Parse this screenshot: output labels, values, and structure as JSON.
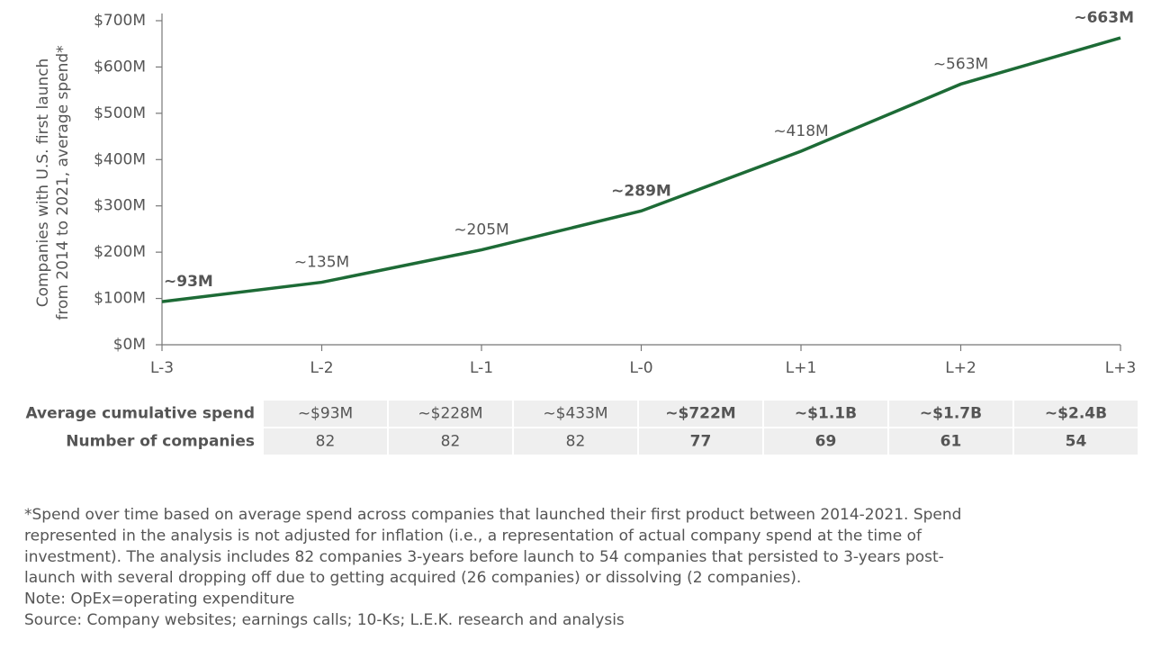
{
  "chart_data": {
    "type": "line",
    "ylabel": [
      "Companies with U.S. first launch",
      "from 2014 to 2021, average spend*"
    ],
    "categories": [
      "L-3",
      "L-2",
      "L-1",
      "L-0",
      "L+1",
      "L+2",
      "L+3"
    ],
    "values": [
      93,
      135,
      205,
      289,
      418,
      563,
      663
    ],
    "value_labels": [
      "~93M",
      "~135M",
      "~205M",
      "~289M",
      "~418M",
      "~563M",
      "~663M"
    ],
    "value_label_bold": [
      true,
      false,
      false,
      true,
      false,
      false,
      true
    ],
    "color": "#1d6b36",
    "ylim": [
      0,
      700
    ],
    "yticks": [
      {
        "value": 0,
        "label": "$0M"
      },
      {
        "value": 100,
        "label": "$100M"
      },
      {
        "value": 200,
        "label": "$200M"
      },
      {
        "value": 300,
        "label": "$300M"
      },
      {
        "value": 400,
        "label": "$400M"
      },
      {
        "value": 500,
        "label": "$500M"
      },
      {
        "value": 600,
        "label": "$600M"
      },
      {
        "value": 700,
        "label": "$700M"
      }
    ],
    "grid": false
  },
  "table": {
    "rows": [
      {
        "label": "Average cumulative spend",
        "cells": [
          "~$93M",
          "~$228M",
          "~$433M",
          "~$722M",
          "~$1.1B",
          "~$1.7B",
          "~$2.4B"
        ]
      },
      {
        "label": "Number of companies",
        "cells": [
          "82",
          "82",
          "82",
          "77",
          "69",
          "61",
          "54"
        ]
      }
    ],
    "highlight": [
      false,
      false,
      false,
      true,
      true,
      true,
      true
    ]
  },
  "footnotes": [
    "*Spend over time based on average spend across companies that launched their first product between 2014-2021. Spend",
    "represented in the analysis is not adjusted for inflation (i.e., a representation of actual company spend at the time of",
    "investment). The analysis includes 82 companies 3-years before launch to 54 companies that persisted to 3-years post-",
    "launch with several dropping off due to getting acquired (26 companies) or dissolving (2 companies).",
    "Note: OpEx=operating expenditure",
    "Source: Company websites; earnings calls; 10-Ks; L.E.K. research and analysis"
  ]
}
